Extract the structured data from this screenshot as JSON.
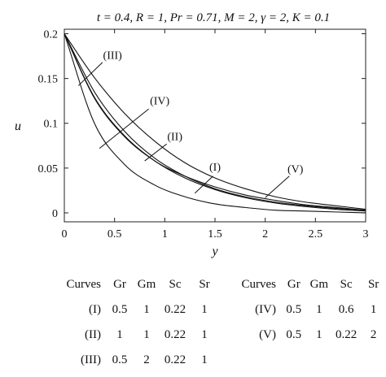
{
  "chart_data": {
    "type": "line",
    "title": "t = 0.4, R = 1, Pr = 0.71, M = 2, γ = 2, K = 0.1",
    "xlabel": "y",
    "ylabel": "u",
    "xlim": [
      0,
      3
    ],
    "ylim": [
      -0.01,
      0.205
    ],
    "xticks": [
      "0",
      "0.5",
      "1",
      "1.5",
      "2",
      "2.5",
      "3"
    ],
    "yticks": [
      "0",
      "0.05",
      "0.1",
      "0.15",
      "0.2"
    ],
    "xtick_values": [
      0,
      0.5,
      1,
      1.5,
      2,
      2.5,
      3
    ],
    "ytick_values": [
      0,
      0.05,
      0.1,
      0.15,
      0.2
    ],
    "grid": false,
    "series": [
      {
        "name": "(I)",
        "x": [
          0,
          0.3,
          0.6,
          0.9,
          1.2,
          1.5,
          1.8,
          2.1,
          2.4,
          2.7,
          3.0
        ],
        "values": [
          0.2,
          0.129,
          0.086,
          0.058,
          0.039,
          0.026,
          0.017,
          0.011,
          0.007,
          0.004,
          0.002
        ]
      },
      {
        "name": "(II)",
        "x": [
          0,
          0.3,
          0.6,
          0.9,
          1.2,
          1.5,
          1.8,
          2.1,
          2.4,
          2.7,
          3.0
        ],
        "values": [
          0.2,
          0.135,
          0.091,
          0.061,
          0.041,
          0.027,
          0.018,
          0.012,
          0.008,
          0.005,
          0.003
        ]
      },
      {
        "name": "(III)",
        "x": [
          0,
          0.3,
          0.6,
          0.9,
          1.2,
          1.5,
          1.8,
          2.1,
          2.4,
          2.7,
          3.0
        ],
        "values": [
          0.2,
          0.151,
          0.111,
          0.08,
          0.056,
          0.039,
          0.027,
          0.018,
          0.012,
          0.008,
          0.004
        ]
      },
      {
        "name": "(IV)",
        "x": [
          0,
          0.3,
          0.6,
          0.9,
          1.2,
          1.5,
          1.8,
          2.1,
          2.4,
          2.7,
          3.0
        ],
        "values": [
          0.2,
          0.1,
          0.054,
          0.031,
          0.018,
          0.01,
          0.006,
          0.003,
          0.002,
          0.001,
          0.0
        ]
      },
      {
        "name": "(V)",
        "x": [
          0,
          0.3,
          0.6,
          0.9,
          1.2,
          1.5,
          1.8,
          2.1,
          2.4,
          2.7,
          3.0
        ],
        "values": [
          0.2,
          0.128,
          0.085,
          0.058,
          0.041,
          0.029,
          0.02,
          0.014,
          0.009,
          0.006,
          0.003
        ]
      }
    ],
    "curve_labels": [
      {
        "text": "(I)",
        "at": [
          1.5,
          0.047
        ]
      },
      {
        "text": "(II)",
        "at": [
          1.1,
          0.081
        ]
      },
      {
        "text": "(III)",
        "at": [
          0.48,
          0.172
        ]
      },
      {
        "text": "(IV)",
        "at": [
          0.95,
          0.121
        ]
      },
      {
        "text": "(V)",
        "at": [
          2.3,
          0.045
        ]
      }
    ],
    "leader_lines": [
      {
        "from": [
          1.48,
          0.041
        ],
        "to": [
          1.3,
          0.022
        ]
      },
      {
        "from": [
          1.02,
          0.077
        ],
        "to": [
          0.8,
          0.058
        ]
      },
      {
        "from": [
          0.38,
          0.168
        ],
        "to": [
          0.14,
          0.142
        ]
      },
      {
        "from": [
          0.84,
          0.116
        ],
        "to": [
          0.35,
          0.072
        ]
      },
      {
        "from": [
          2.24,
          0.041
        ],
        "to": [
          2.0,
          0.017
        ]
      }
    ]
  },
  "legend_table": {
    "headers": [
      "Curves",
      "Gr",
      "Gm",
      "Sc",
      "Sr"
    ],
    "left_rows": [
      [
        "(I)",
        "0.5",
        "1",
        "0.22",
        "1"
      ],
      [
        "(II)",
        "1",
        "1",
        "0.22",
        "1"
      ],
      [
        "(III)",
        "0.5",
        "2",
        "0.22",
        "1"
      ]
    ],
    "right_rows": [
      [
        "(IV)",
        "0.5",
        "1",
        "0.6",
        "1"
      ],
      [
        "(V)",
        "0.5",
        "1",
        "0.22",
        "2"
      ]
    ]
  }
}
